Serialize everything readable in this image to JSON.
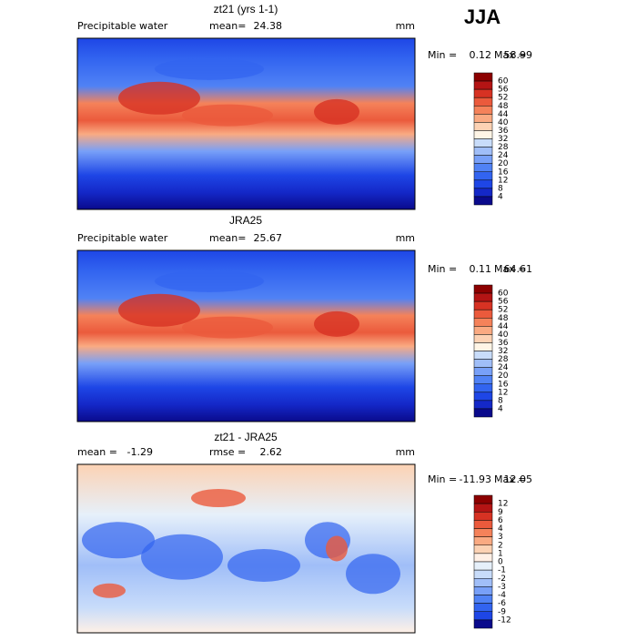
{
  "season": "JJA",
  "panels": [
    {
      "title": "zt21 (yrs 1-1)",
      "left_label": "Precipitable water",
      "center_label": "mean=",
      "center_value": 24.38,
      "units": "mm",
      "min_label": "Min =",
      "min": 0.12,
      "max_label": "Max =",
      "max": 58.99,
      "colorbar": {
        "labels": [
          60,
          56,
          52,
          48,
          44,
          40,
          36,
          32,
          28,
          24,
          20,
          16,
          12,
          8,
          4
        ],
        "colors": [
          "#8c0000",
          "#b41414",
          "#d73223",
          "#eb5a3c",
          "#f5825a",
          "#faaa82",
          "#fcd2b4",
          "#fff5e6",
          "#c8dcfa",
          "#a0bef8",
          "#78a0f8",
          "#5082f5",
          "#3264f0",
          "#1e46e6",
          "#1428c8",
          "#0a0a8c"
        ]
      }
    },
    {
      "title": "JRA25",
      "left_label": "Precipitable water",
      "center_label": "mean=",
      "center_value": 25.67,
      "units": "mm",
      "min_label": "Min =",
      "min": 0.11,
      "max_label": "Max =",
      "max": 64.61,
      "colorbar": {
        "labels": [
          60,
          56,
          52,
          48,
          44,
          40,
          36,
          32,
          28,
          24,
          20,
          16,
          12,
          8,
          4
        ],
        "colors": [
          "#8c0000",
          "#b41414",
          "#d73223",
          "#eb5a3c",
          "#f5825a",
          "#faaa82",
          "#fcd2b4",
          "#fff5e6",
          "#c8dcfa",
          "#a0bef8",
          "#78a0f8",
          "#5082f5",
          "#3264f0",
          "#1e46e6",
          "#1428c8",
          "#0a0a8c"
        ]
      }
    },
    {
      "title": "zt21 - JRA25",
      "left_label": "mean =",
      "left_value": -1.29,
      "center_label": "rmse =",
      "center_value": 2.62,
      "units": "mm",
      "min_label": "Min =",
      "min": -11.93,
      "max_label": "Max =",
      "max": 12.05,
      "colorbar": {
        "labels": [
          12,
          9,
          6,
          4,
          3,
          2,
          1,
          0,
          -1,
          -2,
          -3,
          -4,
          -6,
          -9,
          -12
        ],
        "colors": [
          "#8c0000",
          "#b41414",
          "#d73223",
          "#eb5a3c",
          "#f5825a",
          "#faaa82",
          "#fcd2b4",
          "#fff0e6",
          "#e6f0fa",
          "#c8dcfa",
          "#a0bef8",
          "#78a0f8",
          "#5082f5",
          "#3264f0",
          "#1e46e6",
          "#0a0a8c"
        ]
      }
    }
  ]
}
